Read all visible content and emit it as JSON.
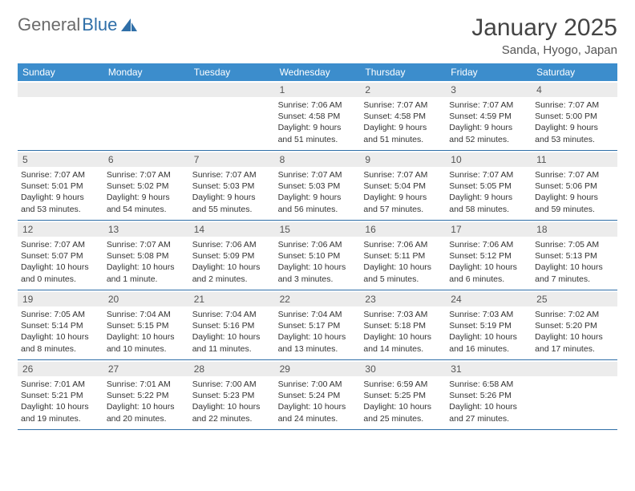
{
  "brand": {
    "part1": "General",
    "part2": "Blue"
  },
  "colors": {
    "header_bg": "#3c8dcc",
    "header_text": "#ffffff",
    "border": "#2f6fa8",
    "daynum_bg": "#ececec",
    "text": "#333333",
    "title_text": "#444444"
  },
  "title": "January 2025",
  "location": "Sanda, Hyogo, Japan",
  "day_headers": [
    "Sunday",
    "Monday",
    "Tuesday",
    "Wednesday",
    "Thursday",
    "Friday",
    "Saturday"
  ],
  "weeks": [
    [
      {
        "n": "",
        "sr": "",
        "ss": "",
        "dl": ""
      },
      {
        "n": "",
        "sr": "",
        "ss": "",
        "dl": ""
      },
      {
        "n": "",
        "sr": "",
        "ss": "",
        "dl": ""
      },
      {
        "n": "1",
        "sr": "Sunrise: 7:06 AM",
        "ss": "Sunset: 4:58 PM",
        "dl": "Daylight: 9 hours and 51 minutes."
      },
      {
        "n": "2",
        "sr": "Sunrise: 7:07 AM",
        "ss": "Sunset: 4:58 PM",
        "dl": "Daylight: 9 hours and 51 minutes."
      },
      {
        "n": "3",
        "sr": "Sunrise: 7:07 AM",
        "ss": "Sunset: 4:59 PM",
        "dl": "Daylight: 9 hours and 52 minutes."
      },
      {
        "n": "4",
        "sr": "Sunrise: 7:07 AM",
        "ss": "Sunset: 5:00 PM",
        "dl": "Daylight: 9 hours and 53 minutes."
      }
    ],
    [
      {
        "n": "5",
        "sr": "Sunrise: 7:07 AM",
        "ss": "Sunset: 5:01 PM",
        "dl": "Daylight: 9 hours and 53 minutes."
      },
      {
        "n": "6",
        "sr": "Sunrise: 7:07 AM",
        "ss": "Sunset: 5:02 PM",
        "dl": "Daylight: 9 hours and 54 minutes."
      },
      {
        "n": "7",
        "sr": "Sunrise: 7:07 AM",
        "ss": "Sunset: 5:03 PM",
        "dl": "Daylight: 9 hours and 55 minutes."
      },
      {
        "n": "8",
        "sr": "Sunrise: 7:07 AM",
        "ss": "Sunset: 5:03 PM",
        "dl": "Daylight: 9 hours and 56 minutes."
      },
      {
        "n": "9",
        "sr": "Sunrise: 7:07 AM",
        "ss": "Sunset: 5:04 PM",
        "dl": "Daylight: 9 hours and 57 minutes."
      },
      {
        "n": "10",
        "sr": "Sunrise: 7:07 AM",
        "ss": "Sunset: 5:05 PM",
        "dl": "Daylight: 9 hours and 58 minutes."
      },
      {
        "n": "11",
        "sr": "Sunrise: 7:07 AM",
        "ss": "Sunset: 5:06 PM",
        "dl": "Daylight: 9 hours and 59 minutes."
      }
    ],
    [
      {
        "n": "12",
        "sr": "Sunrise: 7:07 AM",
        "ss": "Sunset: 5:07 PM",
        "dl": "Daylight: 10 hours and 0 minutes."
      },
      {
        "n": "13",
        "sr": "Sunrise: 7:07 AM",
        "ss": "Sunset: 5:08 PM",
        "dl": "Daylight: 10 hours and 1 minute."
      },
      {
        "n": "14",
        "sr": "Sunrise: 7:06 AM",
        "ss": "Sunset: 5:09 PM",
        "dl": "Daylight: 10 hours and 2 minutes."
      },
      {
        "n": "15",
        "sr": "Sunrise: 7:06 AM",
        "ss": "Sunset: 5:10 PM",
        "dl": "Daylight: 10 hours and 3 minutes."
      },
      {
        "n": "16",
        "sr": "Sunrise: 7:06 AM",
        "ss": "Sunset: 5:11 PM",
        "dl": "Daylight: 10 hours and 5 minutes."
      },
      {
        "n": "17",
        "sr": "Sunrise: 7:06 AM",
        "ss": "Sunset: 5:12 PM",
        "dl": "Daylight: 10 hours and 6 minutes."
      },
      {
        "n": "18",
        "sr": "Sunrise: 7:05 AM",
        "ss": "Sunset: 5:13 PM",
        "dl": "Daylight: 10 hours and 7 minutes."
      }
    ],
    [
      {
        "n": "19",
        "sr": "Sunrise: 7:05 AM",
        "ss": "Sunset: 5:14 PM",
        "dl": "Daylight: 10 hours and 8 minutes."
      },
      {
        "n": "20",
        "sr": "Sunrise: 7:04 AM",
        "ss": "Sunset: 5:15 PM",
        "dl": "Daylight: 10 hours and 10 minutes."
      },
      {
        "n": "21",
        "sr": "Sunrise: 7:04 AM",
        "ss": "Sunset: 5:16 PM",
        "dl": "Daylight: 10 hours and 11 minutes."
      },
      {
        "n": "22",
        "sr": "Sunrise: 7:04 AM",
        "ss": "Sunset: 5:17 PM",
        "dl": "Daylight: 10 hours and 13 minutes."
      },
      {
        "n": "23",
        "sr": "Sunrise: 7:03 AM",
        "ss": "Sunset: 5:18 PM",
        "dl": "Daylight: 10 hours and 14 minutes."
      },
      {
        "n": "24",
        "sr": "Sunrise: 7:03 AM",
        "ss": "Sunset: 5:19 PM",
        "dl": "Daylight: 10 hours and 16 minutes."
      },
      {
        "n": "25",
        "sr": "Sunrise: 7:02 AM",
        "ss": "Sunset: 5:20 PM",
        "dl": "Daylight: 10 hours and 17 minutes."
      }
    ],
    [
      {
        "n": "26",
        "sr": "Sunrise: 7:01 AM",
        "ss": "Sunset: 5:21 PM",
        "dl": "Daylight: 10 hours and 19 minutes."
      },
      {
        "n": "27",
        "sr": "Sunrise: 7:01 AM",
        "ss": "Sunset: 5:22 PM",
        "dl": "Daylight: 10 hours and 20 minutes."
      },
      {
        "n": "28",
        "sr": "Sunrise: 7:00 AM",
        "ss": "Sunset: 5:23 PM",
        "dl": "Daylight: 10 hours and 22 minutes."
      },
      {
        "n": "29",
        "sr": "Sunrise: 7:00 AM",
        "ss": "Sunset: 5:24 PM",
        "dl": "Daylight: 10 hours and 24 minutes."
      },
      {
        "n": "30",
        "sr": "Sunrise: 6:59 AM",
        "ss": "Sunset: 5:25 PM",
        "dl": "Daylight: 10 hours and 25 minutes."
      },
      {
        "n": "31",
        "sr": "Sunrise: 6:58 AM",
        "ss": "Sunset: 5:26 PM",
        "dl": "Daylight: 10 hours and 27 minutes."
      },
      {
        "n": "",
        "sr": "",
        "ss": "",
        "dl": ""
      }
    ]
  ]
}
